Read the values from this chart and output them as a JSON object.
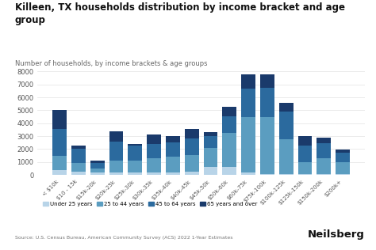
{
  "title": "Killeen, TX households distribution by income bracket and age\ngroup",
  "subtitle": "Number of households, by income brackets & age groups",
  "source": "Source: U.S. Census Bureau, American Community Survey (ACS) 2022 1-Year Estimates",
  "categories": [
    "< $10k",
    "$10 - 15k",
    "$15k-20k",
    "$20k-25k",
    "$25k-30k",
    "$30k-35k",
    "$35k-40k",
    "$40k-45k",
    "$45k-50k",
    "$50k-60k",
    "$60k-75k",
    "$75k-100k",
    "$100k-125k",
    "$125k-150k",
    "$150k-200k",
    "$200k+"
  ],
  "age_groups": [
    "Under 25 years",
    "25 to 44 years",
    "45 to 64 years",
    "65 years and over"
  ],
  "colors": [
    "#b8d4e8",
    "#5b9dc0",
    "#2b6a9e",
    "#1a3a6b"
  ],
  "data": {
    "Under 25 years": [
      350,
      250,
      180,
      200,
      170,
      200,
      200,
      250,
      600,
      650,
      200,
      100,
      100,
      100,
      80,
      60
    ],
    "25 to 44 years": [
      1150,
      700,
      350,
      900,
      950,
      1100,
      1200,
      1300,
      1500,
      2600,
      4300,
      4400,
      2650,
      900,
      1200,
      950
    ],
    "45 to 64 years": [
      2050,
      1050,
      400,
      1500,
      1150,
      1100,
      1100,
      1300,
      900,
      1300,
      2200,
      2250,
      2150,
      1300,
      1200,
      700
    ],
    "65 years and over": [
      1450,
      290,
      200,
      750,
      140,
      700,
      500,
      700,
      300,
      750,
      1050,
      1000,
      650,
      700,
      400,
      280
    ]
  },
  "ylim": [
    0,
    8500
  ],
  "yticks": [
    0,
    1000,
    2000,
    3000,
    4000,
    5000,
    6000,
    7000,
    8000
  ],
  "background_color": "#ffffff",
  "bar_width": 0.75,
  "grid_color": "#e8e8e8"
}
